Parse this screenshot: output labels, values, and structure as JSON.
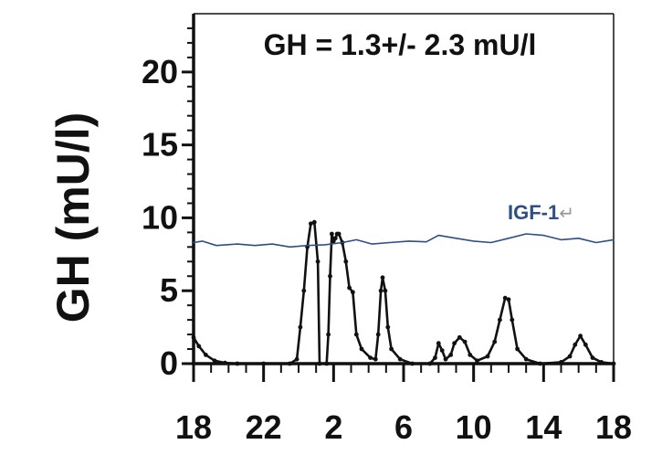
{
  "chart_data": {
    "type": "line",
    "title": "GH = 1.3+/- 2.3 mU/l",
    "ylabel": "GH (mU/l)",
    "xlabel": "",
    "x_ticks": [
      "18",
      "22",
      "2",
      "6",
      "10",
      "14",
      "18"
    ],
    "y_ticks": [
      "0",
      "5",
      "10",
      "15",
      "20"
    ],
    "xlim": [
      0,
      24
    ],
    "ylim": [
      0,
      24
    ],
    "grid": false,
    "series": [
      {
        "name": "",
        "color": "#111111",
        "points": [
          [
            0,
            1.8
          ],
          [
            0.3,
            1.2
          ],
          [
            0.7,
            0.6
          ],
          [
            1.2,
            0.2
          ],
          [
            1.8,
            0.05
          ],
          [
            2.5,
            0
          ],
          [
            4,
            0
          ],
          [
            5.5,
            0
          ],
          [
            5.9,
            0.3
          ],
          [
            6.1,
            2.5
          ],
          [
            6.3,
            5
          ],
          [
            6.5,
            8
          ],
          [
            6.7,
            9.6
          ],
          [
            6.9,
            9.7
          ],
          [
            7.1,
            7
          ],
          [
            7.2,
            0
          ],
          [
            7.6,
            0
          ],
          [
            7.7,
            2
          ],
          [
            7.8,
            6
          ],
          [
            7.9,
            8.9
          ],
          [
            8.0,
            8.4
          ],
          [
            8.1,
            8.6
          ],
          [
            8.2,
            8.9
          ],
          [
            8.3,
            8.9
          ],
          [
            8.5,
            8.3
          ],
          [
            8.7,
            7
          ],
          [
            8.9,
            5.2
          ],
          [
            9.1,
            4.9
          ],
          [
            9.3,
            2
          ],
          [
            9.6,
            1
          ],
          [
            10.1,
            0.4
          ],
          [
            10.4,
            0.3
          ],
          [
            10.55,
            2
          ],
          [
            10.7,
            5
          ],
          [
            10.8,
            5.9
          ],
          [
            10.95,
            5
          ],
          [
            11.1,
            2.5
          ],
          [
            11.3,
            1
          ],
          [
            11.8,
            0.3
          ],
          [
            12.5,
            0
          ],
          [
            13.5,
            0
          ],
          [
            13.8,
            0.4
          ],
          [
            14.0,
            1.4
          ],
          [
            14.2,
            0.9
          ],
          [
            14.4,
            0.3
          ],
          [
            14.7,
            0.6
          ],
          [
            14.9,
            1.4
          ],
          [
            15.2,
            1.8
          ],
          [
            15.5,
            1.5
          ],
          [
            15.8,
            0.6
          ],
          [
            16.2,
            0.2
          ],
          [
            16.8,
            0.5
          ],
          [
            17.2,
            1.5
          ],
          [
            17.5,
            3
          ],
          [
            17.8,
            4.5
          ],
          [
            18.0,
            4.4
          ],
          [
            18.2,
            3
          ],
          [
            18.5,
            1
          ],
          [
            19.0,
            0.3
          ],
          [
            19.8,
            0
          ],
          [
            21,
            0.1
          ],
          [
            21.5,
            0.5
          ],
          [
            21.8,
            1.3
          ],
          [
            22.1,
            1.9
          ],
          [
            22.4,
            1.3
          ],
          [
            22.8,
            0.4
          ],
          [
            23.3,
            0.1
          ],
          [
            24,
            0
          ]
        ]
      },
      {
        "name": "IGF-1",
        "color": "#2f4e84",
        "points": [
          [
            0,
            8.3
          ],
          [
            0.5,
            8.4
          ],
          [
            1.3,
            8.1
          ],
          [
            2.5,
            8.2
          ],
          [
            3.5,
            8.1
          ],
          [
            4.5,
            8.2
          ],
          [
            5.5,
            8.0
          ],
          [
            6.5,
            8.1
          ],
          [
            7.5,
            8.15
          ],
          [
            8.5,
            8.3
          ],
          [
            9.3,
            8.5
          ],
          [
            10.2,
            8.2
          ],
          [
            11.2,
            8.3
          ],
          [
            12.3,
            8.4
          ],
          [
            13.3,
            8.35
          ],
          [
            14.0,
            8.8
          ],
          [
            15.0,
            8.6
          ],
          [
            16.0,
            8.4
          ],
          [
            17.0,
            8.3
          ],
          [
            18.0,
            8.6
          ],
          [
            19.0,
            8.9
          ],
          [
            20.0,
            8.8
          ],
          [
            21.0,
            8.5
          ],
          [
            22.0,
            8.6
          ],
          [
            23.0,
            8.3
          ],
          [
            24,
            8.5
          ]
        ]
      }
    ],
    "annotations": [
      {
        "text": "IGF-1",
        "mark": "↵"
      }
    ]
  }
}
